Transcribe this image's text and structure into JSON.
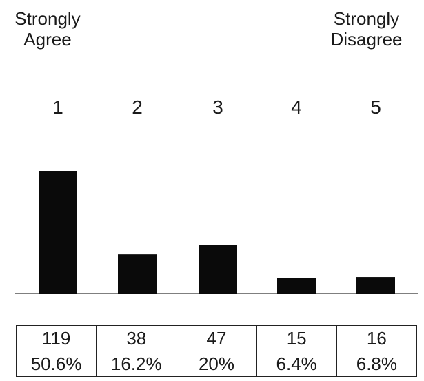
{
  "anchors": {
    "left": {
      "line1": "Strongly",
      "line2": "Agree"
    },
    "right": {
      "line1": "Strongly",
      "line2": "Disagree"
    }
  },
  "chart_data": {
    "type": "bar",
    "categories": [
      "1",
      "2",
      "3",
      "4",
      "5"
    ],
    "values": [
      119,
      38,
      47,
      15,
      16
    ],
    "percentages": [
      "50.6%",
      "16.2%",
      "20%",
      "6.4%",
      "6.8%"
    ],
    "counts": [
      "119",
      "38",
      "47",
      "15",
      "16"
    ],
    "ylim": [
      0,
      119
    ],
    "grid": false,
    "bar_color": "#0a0a0a",
    "baseline_color": "#555555"
  }
}
